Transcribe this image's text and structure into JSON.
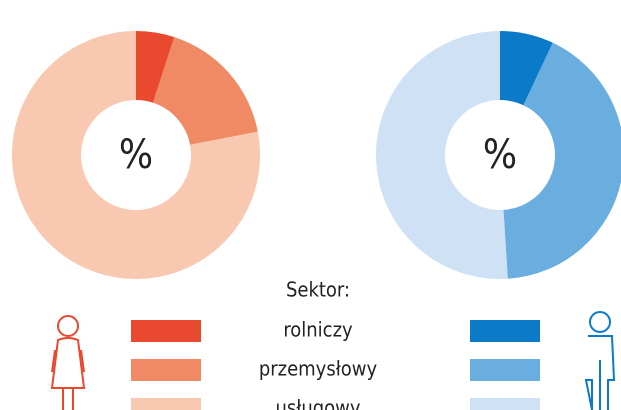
{
  "legend": {
    "title": "Sektor:",
    "categories": [
      "rolniczy",
      "przemysłowy",
      "usługowy"
    ]
  },
  "chart_data": [
    {
      "type": "pie",
      "center_label": "%",
      "values": [
        5,
        17,
        78
      ],
      "colors": [
        "#e8492f",
        "#f08a65",
        "#f9c8b0"
      ]
    },
    {
      "type": "pie",
      "center_label": "%",
      "values": [
        7,
        42,
        51
      ],
      "colors": [
        "#0a7ac9",
        "#6aaee0",
        "#cfe2f5"
      ]
    }
  ]
}
